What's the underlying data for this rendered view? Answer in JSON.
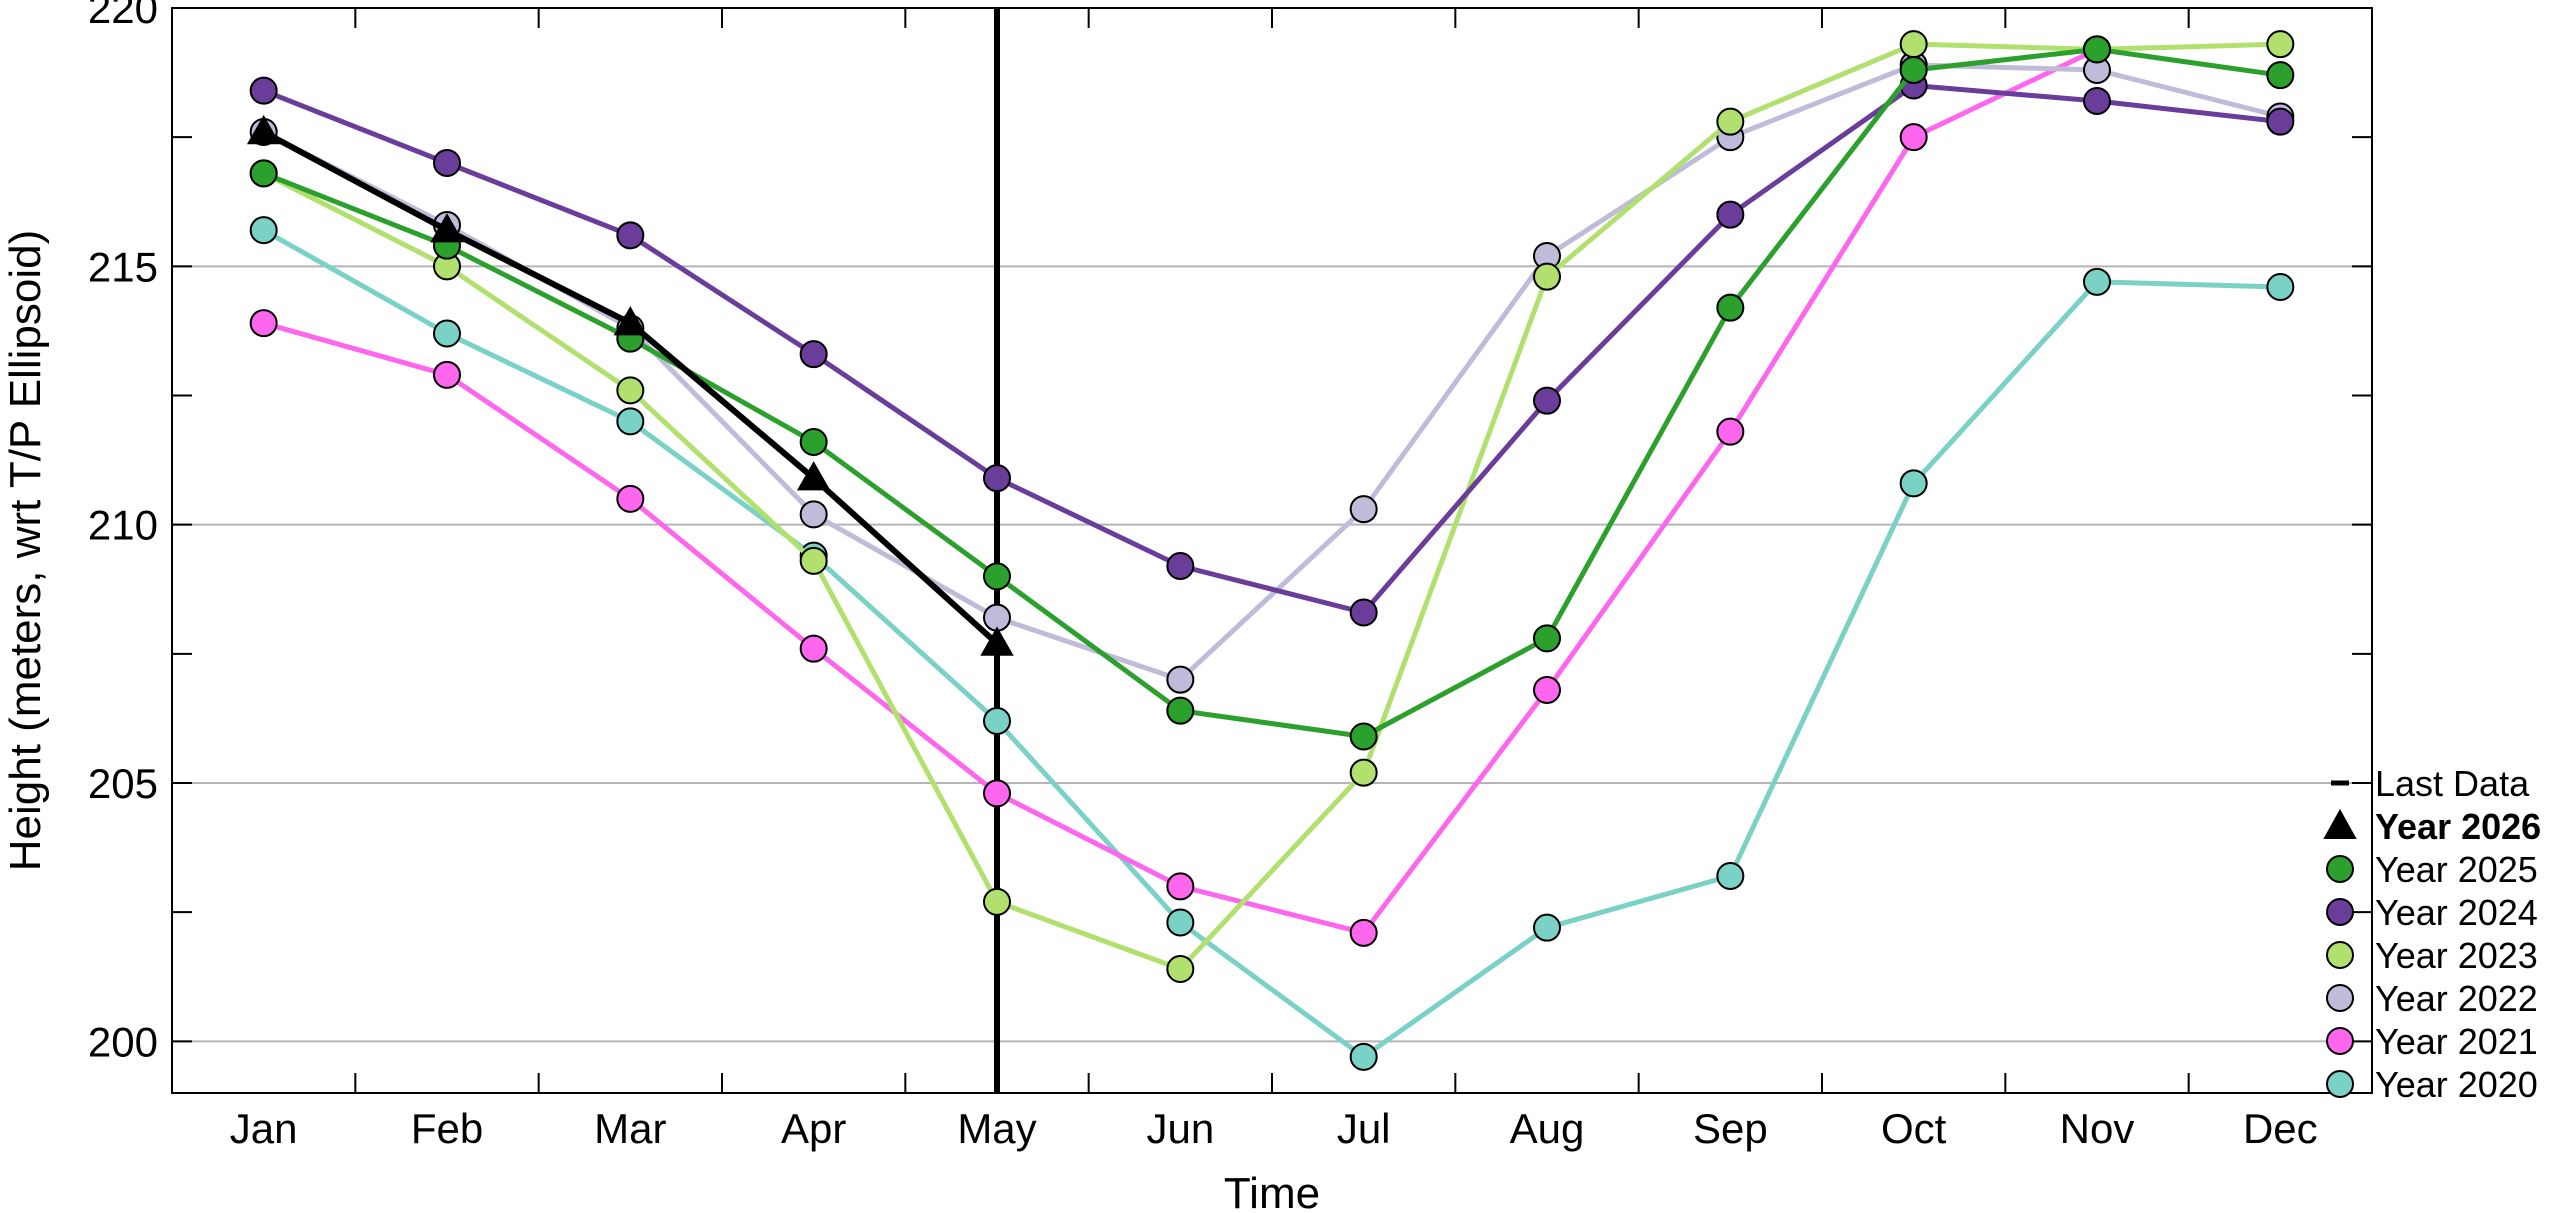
{
  "chart_data": {
    "type": "line",
    "title": "",
    "xlabel": "Time",
    "ylabel": "Height (meters, wrt T/P Ellipsoid)",
    "categories": [
      "Jan",
      "Feb",
      "Mar",
      "Apr",
      "May",
      "Jun",
      "Jul",
      "Aug",
      "Sep",
      "Oct",
      "Nov",
      "Dec"
    ],
    "ylim": [
      199,
      220
    ],
    "yticks": [
      200,
      205,
      210,
      215,
      220
    ],
    "y_minor_ticks": [
      202.5,
      207.5,
      212.5,
      217.5
    ],
    "grid": true,
    "last_data_month": "May",
    "legend_placement": "right",
    "legend": {
      "last_data_label": "Last Data",
      "last_data_color": "#000000"
    },
    "series": [
      {
        "name": "Year 2020",
        "color": "#7ad1c5",
        "marker": "circle",
        "bold": false,
        "values": [
          215.7,
          213.7,
          212.0,
          209.4,
          206.2,
          202.3,
          199.7,
          202.2,
          203.2,
          210.8,
          214.7,
          214.6
        ]
      },
      {
        "name": "Year 2021",
        "color": "#ff66ee",
        "marker": "circle",
        "bold": false,
        "values": [
          213.9,
          212.9,
          210.5,
          207.6,
          204.8,
          203.0,
          202.1,
          206.8,
          211.8,
          217.5,
          219.2,
          null
        ]
      },
      {
        "name": "Year 2022",
        "color": "#bfbcd9",
        "marker": "circle",
        "bold": false,
        "values": [
          217.6,
          215.8,
          213.8,
          210.2,
          208.2,
          207.0,
          210.3,
          215.2,
          217.5,
          218.9,
          218.8,
          217.9
        ]
      },
      {
        "name": "Year 2023",
        "color": "#b2e06f",
        "marker": "circle",
        "bold": false,
        "values": [
          216.8,
          215.0,
          212.6,
          209.3,
          202.7,
          201.4,
          205.2,
          214.8,
          217.8,
          219.3,
          219.2,
          219.3
        ]
      },
      {
        "name": "Year 2024",
        "color": "#6a3d9a",
        "marker": "circle",
        "bold": false,
        "values": [
          218.4,
          217.0,
          215.6,
          213.3,
          210.9,
          209.2,
          208.3,
          212.4,
          216.0,
          218.5,
          218.2,
          217.8
        ]
      },
      {
        "name": "Year 2025",
        "color": "#2ca02c",
        "marker": "circle",
        "bold": false,
        "values": [
          216.8,
          215.4,
          213.6,
          211.6,
          209.0,
          206.4,
          205.9,
          207.8,
          214.2,
          218.8,
          219.2,
          218.7
        ]
      },
      {
        "name": "Year 2026",
        "color": "#000000",
        "marker": "triangle",
        "bold": true,
        "values": [
          217.6,
          215.7,
          213.9,
          210.9,
          207.7,
          null,
          null,
          null,
          null,
          null,
          null,
          null
        ]
      }
    ]
  }
}
